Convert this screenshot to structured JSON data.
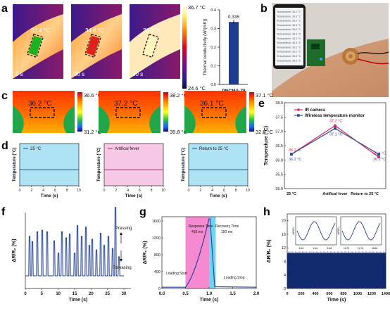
{
  "panels": {
    "a": {
      "letter": "a",
      "frames": [
        {
          "temp": "32.4 °C",
          "time": "0 s"
        },
        {
          "temp": "34.6 °C",
          "time": "30 s"
        },
        {
          "temp": "36.5 °C",
          "time": "50 s"
        }
      ],
      "scale_max": "36.7 °C",
      "scale_min": "24.6 °C",
      "bar_value": "0.335",
      "bar_ylabel": "Thermal conductivity (W/(mK))",
      "bar_xlabel": "PNCMA-78",
      "bar_ticks": [
        "0.4",
        "0.3",
        "0.2",
        "0.1",
        "0.0"
      ]
    },
    "b": {
      "letter": "b",
      "phone_lines": [
        "Temperature: 36.2 °C",
        "Temperature: 36.3 °C",
        "Temperature: 36.2 °C",
        "Temperature: 36.4 °C",
        "Temperature: 36.2 °C",
        "Temperature: 36.3 °C",
        "Temperature: 36.2 °C",
        "Temperature: 36.3 °C",
        "Temperature: 36.2 °C",
        "Temperature: 36.2 °C",
        "Temperature: 36.3 °C",
        "Temperature: 36.2 °C"
      ]
    },
    "c": {
      "letter": "c",
      "frames": [
        {
          "temp": "36.2 °C",
          "max": "36.6 °C",
          "min": "31.2 °C"
        },
        {
          "temp": "37.2 °C",
          "max": "38.2 °C",
          "min": "35.8 °C"
        },
        {
          "temp": "36.1 °C",
          "max": "37.1 °C",
          "min": "32.0 °C"
        }
      ]
    },
    "d": {
      "letter": "d",
      "ylabel": "Temperature (°C)",
      "xlabel": "Time (s)",
      "xticks": [
        "0",
        "2",
        "4",
        "6",
        "8",
        "10"
      ],
      "subplots": [
        {
          "legend": "25 °C",
          "color": "#aee3f5",
          "line_color": "#1f4f8f"
        },
        {
          "legend": "Artifical fever",
          "color": "#f7c9e6",
          "line_color": "#c2187a"
        },
        {
          "legend": "Return to 25 °C",
          "color": "#aee3f5",
          "line_color": "#1f4f8f"
        }
      ]
    },
    "e": {
      "letter": "e",
      "ylabel": "Temperature (°C)",
      "yticks": [
        "38.0",
        "37.5",
        "37.0",
        "36.5",
        "36.0",
        "35.5",
        "35.0"
      ],
      "legend": [
        "IR camera",
        "Wireless temperature monitor"
      ],
      "categories": [
        "25 °C",
        "Artifical fever",
        "Return to 25 °C"
      ],
      "ir_labels": [
        "36.2 °C",
        "37.2 °C",
        "36.1 °C"
      ],
      "wireless_labels": [
        "36.2 °C",
        "37.1 °C",
        "36.2 °C"
      ]
    },
    "f": {
      "letter": "f",
      "ylabel": "ΔR/R₀ (%)",
      "xlabel": "Time (s)",
      "xticks": [
        "0",
        "5",
        "10",
        "15",
        "20",
        "25",
        "30"
      ],
      "pressing": "Pressing",
      "releasing": "Releasing"
    },
    "g": {
      "letter": "g",
      "ylabel": "ΔR/R₀ (%)",
      "xlabel": "Time (s)",
      "xticks": [
        "0.0",
        "0.5",
        "1.0",
        "1.5",
        "2.0"
      ],
      "yticks": [
        "1600",
        "1200",
        "800",
        "400",
        "0"
      ],
      "response": "Response Time",
      "response_val": "416 ms",
      "recovery": "Recovery Time",
      "recovery_val": "150 ms",
      "loading_start": "Loading Start",
      "loading_stop": "Loading Stop"
    },
    "h": {
      "letter": "h",
      "ylabel": "ΔR/R₀ (%)",
      "xlabel": "Time (s)",
      "xticks": [
        "0",
        "200",
        "400",
        "600",
        "800",
        "1000",
        "1200",
        "1400"
      ],
      "yticks": [
        "20",
        "16",
        "12",
        "8",
        "4",
        "0"
      ],
      "inset1_xticks": [
        "160",
        "164",
        "168"
      ],
      "inset2_xticks": [
        "1172",
        "1176",
        "1180"
      ],
      "inset_ylabel": "ΔR/R₀"
    }
  },
  "chart_data": [
    {
      "type": "bar",
      "categories": [
        "PNCMA-78"
      ],
      "values": [
        0.335
      ],
      "ylabel": "Thermal conductivity (W/(mK))",
      "ylim": [
        0,
        0.4
      ]
    },
    {
      "type": "line",
      "categories": [
        "25 °C",
        "Artifical fever",
        "Return to 25 °C"
      ],
      "series": [
        {
          "name": "IR camera",
          "values": [
            36.2,
            37.2,
            36.1
          ]
        },
        {
          "name": "Wireless temperature monitor",
          "values": [
            36.2,
            37.1,
            36.2
          ]
        }
      ],
      "ylabel": "Temperature (°C)",
      "ylim": [
        35.0,
        38.0
      ]
    }
  ]
}
